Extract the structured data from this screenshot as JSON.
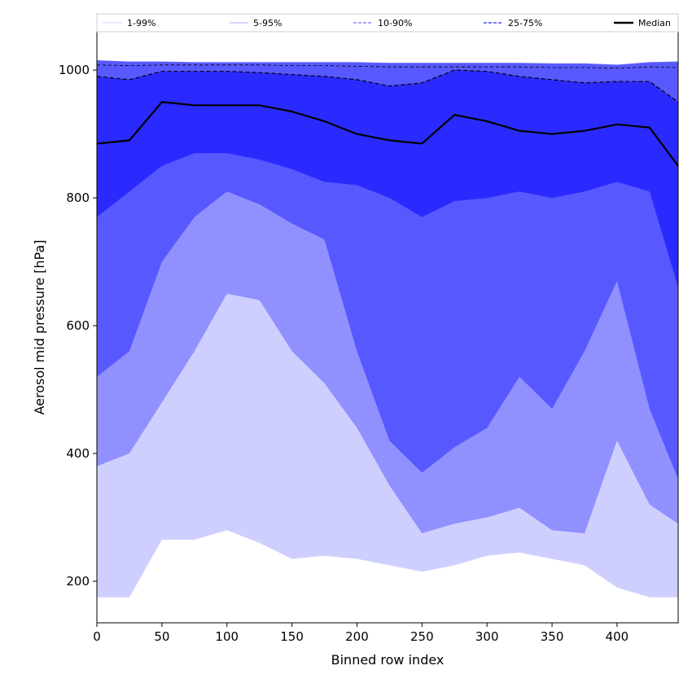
{
  "chart_data": {
    "type": "area",
    "xlabel": "Binned row index",
    "ylabel": "Aerosol mid pressure [hPa]",
    "xlim": [
      0,
      447
    ],
    "ylim": [
      135,
      1060
    ],
    "xticks": [
      0,
      50,
      100,
      150,
      200,
      250,
      300,
      350,
      400
    ],
    "yticks": [
      200,
      400,
      600,
      800,
      1000
    ],
    "grid": false,
    "legend_placement": "top, horizontal strip",
    "colors": {
      "band_1_99": "#cfcfff",
      "band_5_95": "#9090ff",
      "band_10_90": "#5858ff",
      "band_25_75": "#2a2aff",
      "median": "#000000"
    },
    "legend": [
      {
        "label": "1-99%",
        "style": "solid-thin",
        "color": "#cfcfff"
      },
      {
        "label": "5-95%",
        "style": "solid-thin",
        "color": "#b0b0ff"
      },
      {
        "label": "10-90%",
        "style": "dashed",
        "color": "#8c8cff"
      },
      {
        "label": "25-75%",
        "style": "dashed",
        "color": "#4a4aff"
      },
      {
        "label": "Median",
        "style": "solid-thick",
        "color": "#000000"
      }
    ],
    "x": [
      0,
      25,
      50,
      75,
      100,
      125,
      150,
      175,
      200,
      225,
      250,
      275,
      300,
      325,
      350,
      375,
      400,
      425,
      447
    ],
    "series": [
      {
        "name": "1-99%",
        "lower": [
          175,
          175,
          265,
          265,
          280,
          260,
          235,
          240,
          235,
          225,
          215,
          225,
          240,
          245,
          235,
          225,
          190,
          175,
          175
        ],
        "upper": [
          1015,
          1013,
          1013,
          1012,
          1012,
          1012,
          1012,
          1012,
          1012,
          1011,
          1011,
          1011,
          1011,
          1011,
          1010,
          1010,
          1008,
          1012,
          1013
        ]
      },
      {
        "name": "5-95%",
        "lower": [
          380,
          400,
          480,
          560,
          650,
          640,
          560,
          510,
          440,
          350,
          275,
          290,
          300,
          315,
          280,
          275,
          420,
          320,
          290
        ],
        "upper": [
          1008,
          1007,
          1008,
          1008,
          1008,
          1008,
          1007,
          1007,
          1006,
          1005,
          1005,
          1005,
          1005,
          1005,
          1004,
          1004,
          1003,
          1005,
          1004
        ]
      },
      {
        "name": "10-90%",
        "lower": [
          520,
          560,
          700,
          770,
          810,
          790,
          760,
          735,
          560,
          420,
          370,
          410,
          440,
          520,
          470,
          560,
          670,
          470,
          360
        ]
      },
      {
        "name": "25-75%",
        "lower": [
          770,
          810,
          850,
          870,
          870,
          860,
          845,
          825,
          820,
          800,
          770,
          795,
          800,
          810,
          800,
          810,
          825,
          810,
          660
        ],
        "upper": [
          990,
          985,
          998,
          998,
          998,
          996,
          993,
          990,
          985,
          975,
          980,
          1000,
          998,
          990,
          985,
          980,
          982,
          982,
          950
        ]
      },
      {
        "name": "Median",
        "values": [
          885,
          890,
          950,
          945,
          945,
          945,
          935,
          920,
          900,
          890,
          885,
          930,
          920,
          905,
          900,
          905,
          915,
          910,
          850
        ]
      }
    ]
  }
}
